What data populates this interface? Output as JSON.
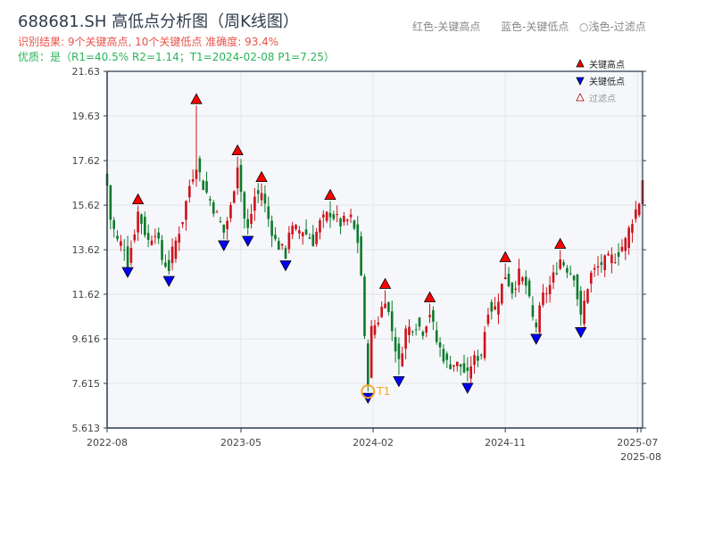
{
  "header": {
    "title": "688681.SH 高低点分析图（周K线图）",
    "result": "识别结果: 9个关键高点, 10个关键低点  准确度: 93.4%",
    "quality": "优质：是（R1=40.5%  R2=1.14；T1=2024-02-08 P1=7.25）",
    "legend_red": "红色-关键高点",
    "legend_blue": "蓝色-关键低点",
    "legend_light": "○浅色-过滤点"
  },
  "colors": {
    "up": "#d0101a",
    "down": "#0c7a2c",
    "high": "#ff0000",
    "low": "#0000ff",
    "t1": "#f5a623",
    "axis": "#2f3b4a"
  },
  "chart_data": {
    "type": "candlestick",
    "title": "688681.SH 高低点分析图（周K线图）",
    "ylim": [
      5.613,
      21.63
    ],
    "yticks": [
      "5.613",
      "7.615",
      "9.616",
      "11.62",
      "13.62",
      "15.62",
      "17.62",
      "19.63",
      "21.63"
    ],
    "ytick_values": [
      5.613,
      7.615,
      9.616,
      11.62,
      13.62,
      15.62,
      17.62,
      19.63,
      21.63
    ],
    "xticks": [
      {
        "label": "2022-08",
        "week": 0
      },
      {
        "label": "2023-05",
        "week": 39
      },
      {
        "label": "2024-02",
        "week": 77.5
      },
      {
        "label": "2024-11",
        "week": 116
      },
      {
        "label": "2025-07",
        "week": 154.5
      },
      {
        "label": "2025-08",
        "week": 155.5
      }
    ],
    "weeks": 156,
    "close_path": [
      [
        0,
        16.5
      ],
      [
        1,
        15
      ],
      [
        3,
        14
      ],
      [
        5,
        13.8
      ],
      [
        6,
        13
      ],
      [
        8,
        14.5
      ],
      [
        9,
        15.3
      ],
      [
        12,
        14
      ],
      [
        14,
        14.5
      ],
      [
        16,
        13.2
      ],
      [
        18,
        12.8
      ],
      [
        19,
        13.5
      ],
      [
        22,
        15
      ],
      [
        24,
        16.5
      ],
      [
        26,
        17.5
      ],
      [
        28,
        16.5
      ],
      [
        31,
        15.5
      ],
      [
        33,
        14.8
      ],
      [
        34,
        14.4
      ],
      [
        36,
        15.5
      ],
      [
        38,
        17.5
      ],
      [
        40,
        15
      ],
      [
        41,
        14.5
      ],
      [
        43,
        16
      ],
      [
        45,
        16.2
      ],
      [
        47,
        15
      ],
      [
        49,
        14
      ],
      [
        52,
        13.4
      ],
      [
        53,
        14.5
      ],
      [
        57,
        14.5
      ],
      [
        60,
        14
      ],
      [
        62,
        14.8
      ],
      [
        65,
        15.3
      ],
      [
        68,
        14.8
      ],
      [
        71,
        15
      ],
      [
        73,
        14
      ],
      [
        74,
        12.5
      ],
      [
        75,
        9.5
      ],
      [
        76,
        7.8
      ],
      [
        77,
        10
      ],
      [
        79,
        10.5
      ],
      [
        81,
        11.5
      ],
      [
        83,
        10
      ],
      [
        85,
        8.5
      ],
      [
        87,
        10
      ],
      [
        90,
        10.3
      ],
      [
        92,
        10
      ],
      [
        94,
        10.8
      ],
      [
        96,
        9.5
      ],
      [
        99,
        8.5
      ],
      [
        101,
        8.5
      ],
      [
        103,
        8.4
      ],
      [
        105,
        7.9
      ],
      [
        106,
        8.5
      ],
      [
        109,
        9
      ],
      [
        111,
        11
      ],
      [
        113,
        11
      ],
      [
        115,
        12
      ],
      [
        116,
        12.5
      ],
      [
        118,
        11.8
      ],
      [
        120,
        12.5
      ],
      [
        122,
        12
      ],
      [
        124,
        10.5
      ],
      [
        125,
        10.2
      ],
      [
        127,
        11.5
      ],
      [
        129,
        12
      ],
      [
        131,
        12.8
      ],
      [
        132,
        13.2
      ],
      [
        134,
        12.8
      ],
      [
        136,
        12.5
      ],
      [
        138,
        10.5
      ],
      [
        140,
        12
      ],
      [
        141,
        12.5
      ],
      [
        144,
        13
      ],
      [
        148,
        13.3
      ],
      [
        151,
        14
      ],
      [
        153,
        15
      ],
      [
        155,
        15.8
      ],
      [
        156,
        16.8
      ]
    ],
    "key_highs": [
      [
        9,
        15.6
      ],
      [
        26,
        20.1
      ],
      [
        38,
        17.8
      ],
      [
        45,
        16.6
      ],
      [
        65,
        15.8
      ],
      [
        81,
        11.8
      ],
      [
        94,
        11.2
      ],
      [
        116,
        13.0
      ],
      [
        132,
        13.6
      ]
    ],
    "key_lows": [
      [
        6,
        12.9
      ],
      [
        18,
        12.5
      ],
      [
        34,
        14.1
      ],
      [
        41,
        14.3
      ],
      [
        52,
        13.2
      ],
      [
        76,
        7.25
      ],
      [
        85,
        8.0
      ],
      [
        105,
        7.7
      ],
      [
        125,
        9.9
      ],
      [
        138,
        10.2
      ]
    ],
    "t1": {
      "label": "T1",
      "week": 76,
      "price": 7.25
    },
    "legend": [
      "关键高点",
      "关键低点",
      "过滤点"
    ],
    "legend_placement": "top-right"
  }
}
